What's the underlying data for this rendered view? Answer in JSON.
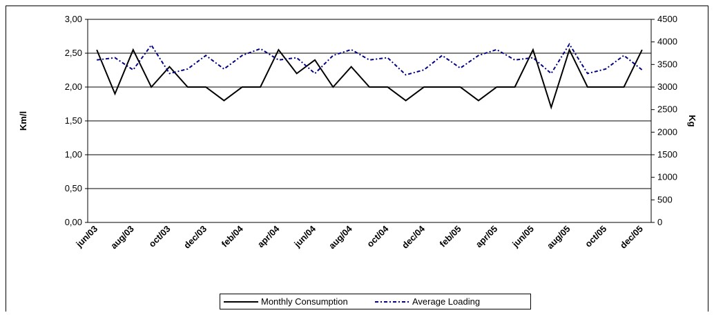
{
  "chart_data": {
    "type": "line",
    "y_label": "Km/l",
    "y2_label": "Kg",
    "categories": [
      "jun/03",
      null,
      "aug/03",
      null,
      "oct/03",
      null,
      "dec/03",
      null,
      "feb/04",
      null,
      "apr/04",
      null,
      "jun/04",
      null,
      "aug/04",
      null,
      "oct/04",
      null,
      "dec/04",
      null,
      "feb/05",
      null,
      "apr/05",
      null,
      "jun/05",
      null,
      "aug/05",
      null,
      "oct/05",
      null,
      "dec/05"
    ],
    "series": [
      {
        "name": "Monthly Consumption",
        "color": "#000000",
        "dash": "solid",
        "values": [
          2.55,
          1.9,
          2.55,
          2.0,
          2.3,
          2.0,
          2.0,
          1.8,
          2.0,
          2.0,
          2.55,
          2.2,
          2.4,
          2.0,
          2.3,
          2.0,
          2.0,
          1.8,
          2.0,
          2.0,
          2.0,
          1.8,
          2.0,
          2.0,
          2.55,
          1.7,
          2.55,
          2.0,
          2.0,
          2.0,
          2.55
        ]
      },
      {
        "name": "Average Loading",
        "color": "#000080",
        "dash": "dashdot",
        "axis": "y2",
        "values": [
          3600,
          3650,
          3380,
          3930,
          3300,
          3400,
          3700,
          3400,
          3700,
          3850,
          3600,
          3650,
          3300,
          3700,
          3830,
          3600,
          3650,
          3270,
          3380,
          3700,
          3420,
          3700,
          3830,
          3600,
          3650,
          3300,
          3950,
          3300,
          3400,
          3700,
          3380
        ]
      }
    ],
    "ylim": [
      0,
      3
    ],
    "yticks": [
      {
        "value": 0,
        "label": "0,00"
      },
      {
        "value": 0.5,
        "label": "0,50"
      },
      {
        "value": 1,
        "label": "1,00"
      },
      {
        "value": 1.5,
        "label": "1,50"
      },
      {
        "value": 2,
        "label": "2,00"
      },
      {
        "value": 2.5,
        "label": "2,50"
      },
      {
        "value": 3,
        "label": "3,00"
      }
    ],
    "y2lim": [
      0,
      4500
    ],
    "y2ticks": [
      0,
      500,
      1000,
      1500,
      2000,
      2500,
      3000,
      3500,
      4000,
      4500
    ],
    "grid": true,
    "legend": "bottom"
  }
}
